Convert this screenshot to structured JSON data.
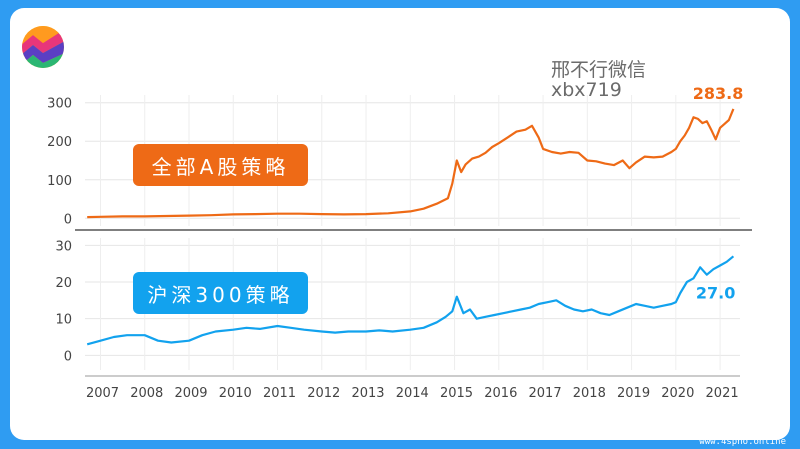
{
  "watermark": {
    "line1": "邢不行微信",
    "line2": "xbx719"
  },
  "footer": "www.4spho.online",
  "colors": {
    "top": "#ee6a16",
    "bottom": "#12a2ee",
    "frame": "#2f9cf2"
  },
  "chart_data": [
    {
      "type": "line",
      "title": "",
      "series": [
        {
          "name": "全部A股策略",
          "color": "#ee6a16",
          "x": [
            2006.7,
            2007.0,
            2007.5,
            2008.0,
            2008.5,
            2009.0,
            2009.5,
            2010.0,
            2010.5,
            2011.0,
            2011.5,
            2012.0,
            2012.5,
            2013.0,
            2013.5,
            2014.0,
            2014.3,
            2014.6,
            2014.85,
            2014.95,
            2015.05,
            2015.15,
            2015.25,
            2015.4,
            2015.55,
            2015.7,
            2015.85,
            2016.0,
            2016.2,
            2016.4,
            2016.6,
            2016.75,
            2016.9,
            2017.0,
            2017.2,
            2017.4,
            2017.6,
            2017.8,
            2018.0,
            2018.2,
            2018.4,
            2018.6,
            2018.8,
            2018.95,
            2019.1,
            2019.3,
            2019.5,
            2019.7,
            2019.9,
            2020.0,
            2020.1,
            2020.2,
            2020.3,
            2020.4,
            2020.5,
            2020.6,
            2020.7,
            2020.8,
            2020.9,
            2021.0,
            2021.1,
            2021.2,
            2021.3
          ],
          "y": [
            3,
            4,
            5,
            5,
            6,
            7,
            8,
            10,
            11,
            12,
            12,
            11,
            10,
            11,
            13,
            18,
            25,
            38,
            52,
            90,
            150,
            120,
            140,
            155,
            160,
            170,
            185,
            195,
            210,
            225,
            230,
            240,
            210,
            180,
            172,
            168,
            172,
            170,
            150,
            148,
            142,
            138,
            150,
            130,
            145,
            160,
            158,
            160,
            172,
            180,
            200,
            215,
            235,
            262,
            258,
            247,
            252,
            230,
            205,
            235,
            245,
            255,
            283.8
          ]
        }
      ],
      "ylim": [
        -20,
        320
      ],
      "ytick_labels": [
        "0",
        "100",
        "200",
        "300"
      ],
      "end_label": "283.8"
    },
    {
      "type": "line",
      "title": "",
      "series": [
        {
          "name": "沪深300策略",
          "color": "#12a2ee",
          "x": [
            2006.7,
            2007.0,
            2007.3,
            2007.6,
            2008.0,
            2008.3,
            2008.6,
            2009.0,
            2009.3,
            2009.6,
            2010.0,
            2010.3,
            2010.6,
            2011.0,
            2011.3,
            2011.6,
            2012.0,
            2012.3,
            2012.6,
            2013.0,
            2013.3,
            2013.6,
            2014.0,
            2014.3,
            2014.6,
            2014.8,
            2014.95,
            2015.05,
            2015.2,
            2015.35,
            2015.5,
            2015.7,
            2015.9,
            2016.1,
            2016.3,
            2016.5,
            2016.7,
            2016.9,
            2017.1,
            2017.3,
            2017.5,
            2017.7,
            2017.9,
            2018.1,
            2018.3,
            2018.5,
            2018.7,
            2018.9,
            2019.1,
            2019.3,
            2019.5,
            2019.7,
            2019.9,
            2020.0,
            2020.1,
            2020.25,
            2020.4,
            2020.55,
            2020.7,
            2020.85,
            2021.0,
            2021.15,
            2021.3
          ],
          "y": [
            3,
            4,
            5,
            5.5,
            5.5,
            4,
            3.5,
            4,
            5.5,
            6.5,
            7,
            7.5,
            7.2,
            8,
            7.5,
            7,
            6.5,
            6.2,
            6.5,
            6.5,
            6.8,
            6.5,
            7,
            7.5,
            9,
            10.5,
            12,
            16,
            11.5,
            12.5,
            10,
            10.5,
            11,
            11.5,
            12,
            12.5,
            13,
            14,
            14.5,
            15,
            13.5,
            12.5,
            12,
            12.5,
            11.5,
            11,
            12,
            13,
            14,
            13.5,
            13,
            13.5,
            14,
            14.5,
            17,
            20,
            21,
            24,
            22,
            23.5,
            24.5,
            25.5,
            27.0
          ]
        }
      ],
      "ylim": [
        -4,
        32
      ],
      "ytick_labels": [
        "0",
        "10",
        "20",
        "30"
      ],
      "end_label": "27.0"
    }
  ],
  "x_axis": {
    "labels": [
      "2007",
      "2008",
      "2009",
      "2010",
      "2011",
      "2012",
      "2013",
      "2014",
      "2015",
      "2016",
      "2017",
      "2018",
      "2019",
      "2020",
      "2021"
    ]
  },
  "badges": {
    "top": "全部A股策略",
    "bottom": "沪深300策略"
  }
}
